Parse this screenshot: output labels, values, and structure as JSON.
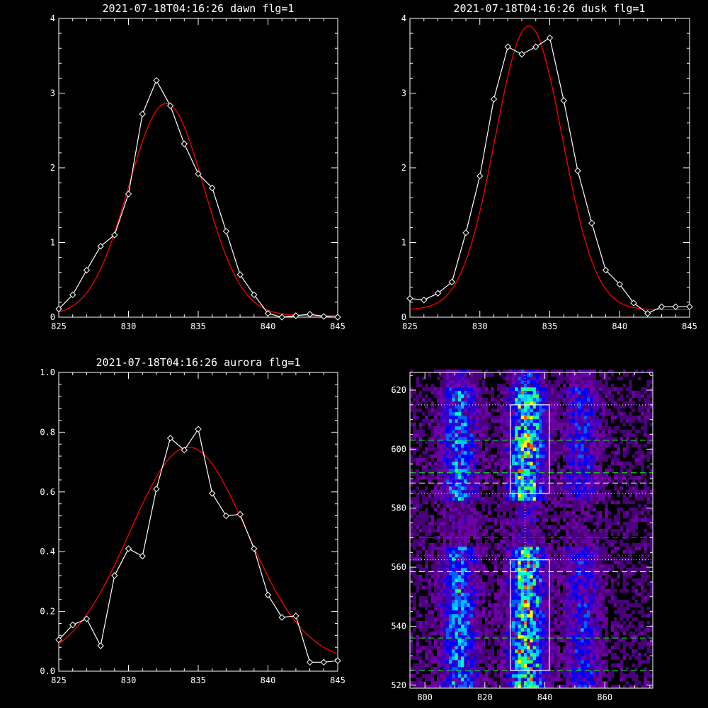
{
  "chart_data": [
    {
      "type": "line",
      "title": "2021-07-18T04:16:26 dawn flg=1",
      "xlim": [
        825,
        845
      ],
      "ylim": [
        0,
        4
      ],
      "xticks": [
        825,
        830,
        835,
        840,
        845
      ],
      "yticks": [
        0,
        1,
        2,
        3,
        4
      ],
      "series": [
        {
          "kind": "data",
          "color": "#ffffff",
          "marker": "diamond",
          "x": [
            825,
            826,
            827,
            828,
            829,
            830,
            831,
            832,
            833,
            834,
            835,
            836,
            837,
            838,
            839,
            840,
            841,
            842,
            843,
            844,
            845
          ],
          "y": [
            0.11,
            0.3,
            0.63,
            0.95,
            1.1,
            1.65,
            2.72,
            3.17,
            2.83,
            2.32,
            1.92,
            1.73,
            1.15,
            0.57,
            0.3,
            0.05,
            0.0,
            0.02,
            0.04,
            0.01,
            0.0
          ]
        },
        {
          "kind": "fit",
          "color": "#ff0000",
          "gauss": {
            "amp": 2.84,
            "center": 832.7,
            "sigma": 2.7,
            "base": 0.02
          }
        }
      ]
    },
    {
      "type": "line",
      "title": "2021-07-18T04:16:26 dusk flg=1",
      "xlim": [
        825,
        845
      ],
      "ylim": [
        0,
        4
      ],
      "xticks": [
        825,
        830,
        835,
        840,
        845
      ],
      "yticks": [
        0,
        1,
        2,
        3,
        4
      ],
      "series": [
        {
          "kind": "data",
          "color": "#ffffff",
          "marker": "diamond",
          "x": [
            825,
            826,
            827,
            828,
            829,
            830,
            831,
            832,
            833,
            834,
            835,
            836,
            837,
            838,
            839,
            840,
            841,
            842,
            843,
            844,
            845
          ],
          "y": [
            0.25,
            0.23,
            0.32,
            0.47,
            1.13,
            1.89,
            2.92,
            3.62,
            3.52,
            3.62,
            3.74,
            2.9,
            1.96,
            1.26,
            0.63,
            0.44,
            0.19,
            0.05,
            0.14,
            0.14,
            0.14
          ]
        },
        {
          "kind": "fit",
          "color": "#ff0000",
          "gauss": {
            "amp": 3.8,
            "center": 833.5,
            "sigma": 2.4,
            "base": 0.1
          }
        }
      ]
    },
    {
      "type": "line",
      "title": "2021-07-18T04:16:26 aurora flg=1",
      "xlim": [
        825,
        845
      ],
      "ylim": [
        0,
        1.0
      ],
      "xticks": [
        825,
        830,
        835,
        840,
        845
      ],
      "yticks": [
        0.0,
        0.2,
        0.4,
        0.6,
        0.8,
        1.0
      ],
      "series": [
        {
          "kind": "data",
          "color": "#ffffff",
          "marker": "diamond",
          "x": [
            825,
            826,
            827,
            828,
            829,
            830,
            831,
            832,
            833,
            834,
            835,
            836,
            837,
            838,
            839,
            840,
            841,
            842,
            843,
            844,
            845
          ],
          "y": [
            0.105,
            0.155,
            0.175,
            0.085,
            0.32,
            0.41,
            0.385,
            0.61,
            0.78,
            0.74,
            0.81,
            0.595,
            0.52,
            0.525,
            0.41,
            0.255,
            0.18,
            0.185,
            0.03,
            0.03,
            0.035
          ]
        },
        {
          "kind": "fit",
          "color": "#ff0000",
          "gauss": {
            "amp": 0.72,
            "center": 834.3,
            "sigma": 4.2,
            "base": 0.03
          }
        }
      ]
    },
    {
      "type": "heatmap",
      "xlim": [
        795,
        876
      ],
      "ylim": [
        519,
        626
      ],
      "xticks": [
        800,
        820,
        840,
        860
      ],
      "yticks": [
        520,
        540,
        560,
        580,
        600,
        620
      ],
      "colormap": [
        "#000000",
        "#4a007a",
        "#6e00a8",
        "#3a00c8",
        "#0000ff",
        "#0060ff",
        "#00bfff",
        "#00ffc0",
        "#40ff40",
        "#ffff00",
        "#ff6000",
        "#ff0000"
      ],
      "cells": [
        {
          "x": 834,
          "y": 601,
          "v": 11
        },
        {
          "x": 835,
          "y": 600,
          "v": 10
        },
        {
          "x": 831,
          "y": 531,
          "v": 11
        },
        {
          "x": 833,
          "y": 535,
          "v": 9
        },
        {
          "x": 831,
          "y": 592,
          "v": 10
        },
        {
          "x": 833,
          "y": 597,
          "v": 8
        }
      ],
      "boxes": [
        {
          "x0": 828.5,
          "x1": 841.5,
          "y0": 585,
          "y1": 615,
          "color": "#ffffff"
        },
        {
          "x0": 828.5,
          "x1": 841.5,
          "y0": 525,
          "y1": 562.5,
          "color": "#ffffff"
        }
      ],
      "hlines": [
        {
          "y": 615,
          "color": "#ffffff",
          "style": "dotted"
        },
        {
          "y": 603,
          "color": "#00ff00",
          "style": "dashed"
        },
        {
          "y": 592,
          "color": "#00ff00",
          "style": "dashed"
        },
        {
          "y": 590,
          "color": "#ff00ff",
          "style": "dotted"
        },
        {
          "y": 588.5,
          "color": "#ffffff",
          "style": "dashed"
        },
        {
          "y": 585,
          "color": "#ffffff",
          "style": "dotted"
        },
        {
          "y": 570,
          "color": "#ff0000",
          "style": "dashed"
        },
        {
          "y": 564,
          "color": "#ff00ff",
          "style": "dotted"
        },
        {
          "y": 562.5,
          "color": "#ffffff",
          "style": "dotted"
        },
        {
          "y": 558.5,
          "color": "#ffffff",
          "style": "dashed"
        },
        {
          "y": 536,
          "color": "#00ff00",
          "style": "dashed"
        },
        {
          "y": 525,
          "color": "#00ff00",
          "style": "dashed"
        }
      ],
      "vlines": [
        {
          "x": 833.4,
          "color": "#ffffff",
          "style": "dotted"
        }
      ]
    }
  ]
}
